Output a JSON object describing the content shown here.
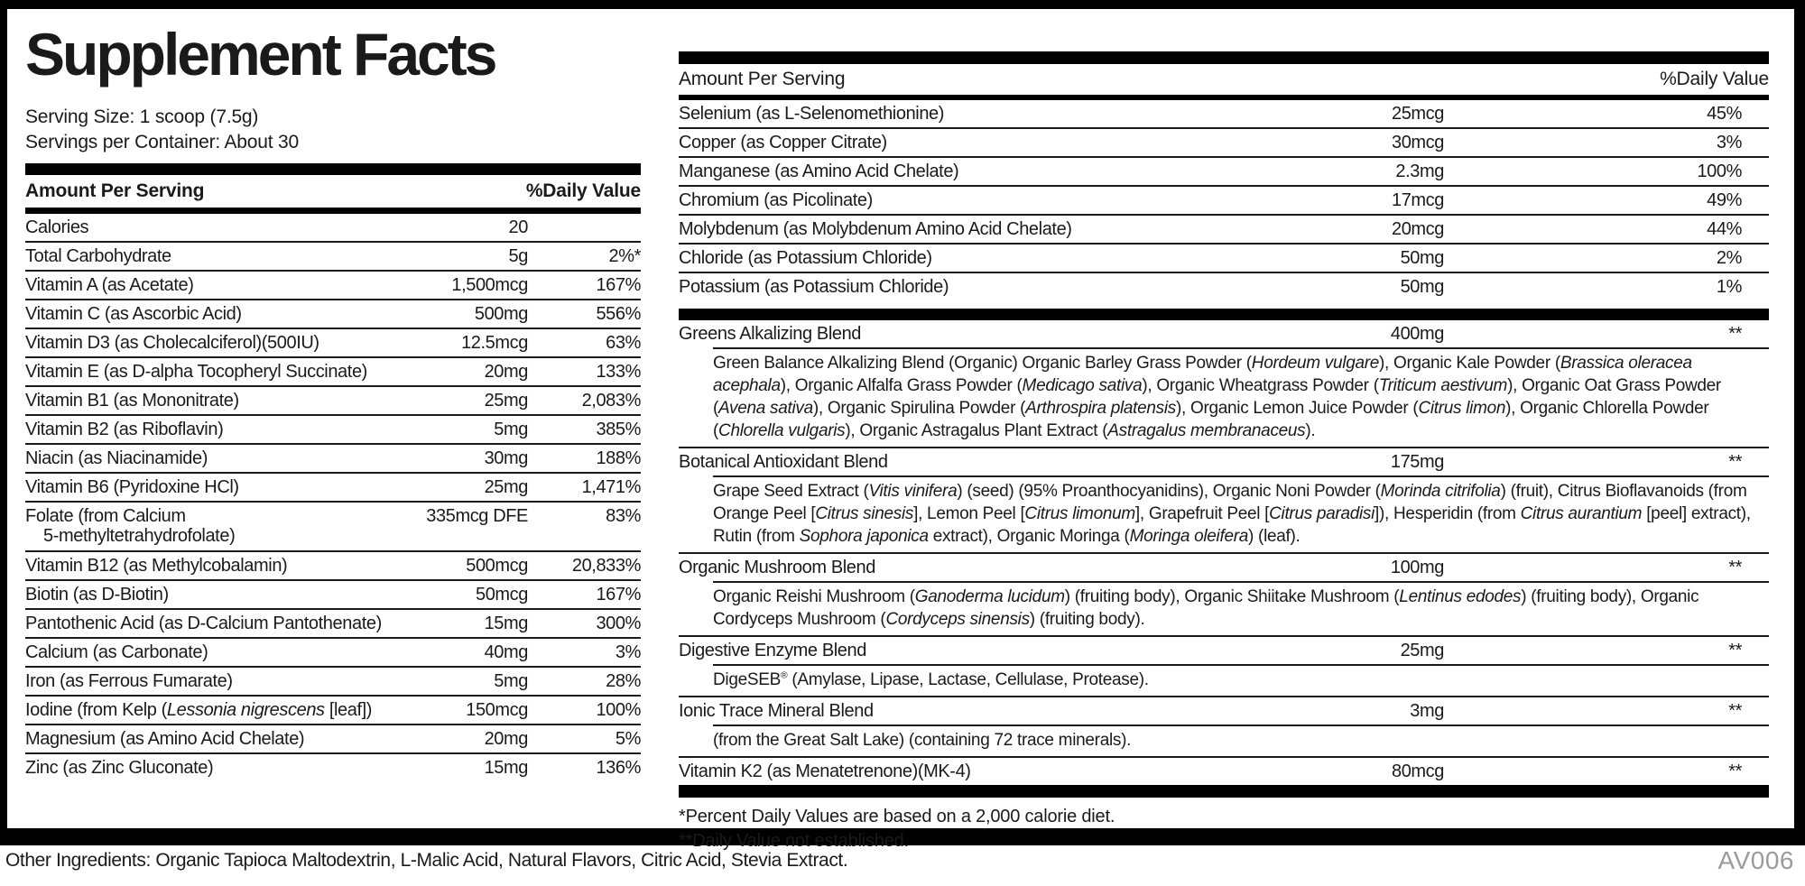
{
  "label": {
    "title": "Supplement Facts",
    "serving_size": "Serving Size: 1 scoop (7.5g)",
    "servings_per_container": "Servings per Container: About 30",
    "other_ingredients": "Other Ingredients: Organic Tapioca Maltodextrin, L-Malic Acid, Natural Flavors, Citric Acid, Stevia Extract.",
    "code": "AV006",
    "footnotes": [
      "*Percent Daily Values are based on a 2,000 calorie diet.",
      "**Daily Value not established."
    ],
    "colors": {
      "text": "#1a1a1a",
      "rule_bars": "#000000",
      "code_gray": "#9b9b9b",
      "background": "#ffffff"
    }
  },
  "left_table": {
    "header": {
      "amount": "Amount Per Serving",
      "dv": "%Daily Value"
    },
    "rows": [
      {
        "name": "Calories",
        "amount": "20",
        "dv": ""
      },
      {
        "name": "Total Carbohydrate",
        "amount": "5g",
        "dv": "2%*"
      },
      {
        "name": "Vitamin A (as Acetate)",
        "amount": "1,500mcg",
        "dv": "167%"
      },
      {
        "name": "Vitamin C (as Ascorbic Acid)",
        "amount": "500mg",
        "dv": "556%"
      },
      {
        "name": "Vitamin D3 (as Cholecalciferol)(500IU)",
        "amount": "12.5mcg",
        "dv": "63%"
      },
      {
        "name": "Vitamin E (as D-alpha Tocopheryl Succinate)",
        "amount": "20mg",
        "dv": "133%"
      },
      {
        "name": "Vitamin B1 (as Mononitrate)",
        "amount": "25mg",
        "dv": "2,083%"
      },
      {
        "name": "Vitamin B2 (as Riboflavin)",
        "amount": "5mg",
        "dv": "385%"
      },
      {
        "name": "Niacin (as Niacinamide)",
        "amount": "30mg",
        "dv": "188%"
      },
      {
        "name": "Vitamin B6 (Pyridoxine HCl)",
        "amount": "25mg",
        "dv": "1,471%"
      },
      {
        "name": "Folate (from Calcium",
        "name2": "5-methyltetrahydrofolate)",
        "amount": "335mcg DFE",
        "dv": "83%"
      },
      {
        "name": "Vitamin B12 (as Methylcobalamin)",
        "amount": "500mcg",
        "dv": "20,833%"
      },
      {
        "name": "Biotin (as D-Biotin)",
        "amount": "50mcg",
        "dv": "167%"
      },
      {
        "name": "Pantothenic Acid (as D-Calcium Pantothenate)",
        "amount": "15mg",
        "dv": "300%"
      },
      {
        "name": "Calcium (as Carbonate)",
        "amount": "40mg",
        "dv": "3%"
      },
      {
        "name": "Iron (as Ferrous Fumarate)",
        "amount": "5mg",
        "dv": "28%"
      },
      {
        "name": [
          {
            "t": "Iodine (from Kelp ("
          },
          {
            "t": "Lessonia nigrescens",
            "i": true
          },
          {
            "t": " [leaf])"
          }
        ],
        "amount": "150mcg",
        "dv": "100%"
      },
      {
        "name": "Magnesium (as Amino Acid Chelate)",
        "amount": "20mg",
        "dv": "5%"
      },
      {
        "name": "Zinc (as Zinc Gluconate)",
        "amount": "15mg",
        "dv": "136%"
      }
    ]
  },
  "right_table": {
    "header": {
      "amount": "Amount Per Serving",
      "dv": "%Daily Value"
    },
    "rows": [
      {
        "name": "Selenium (as L-Selenomethionine)",
        "amount": "25mcg",
        "dv": "45%"
      },
      {
        "name": "Copper (as Copper Citrate)",
        "amount": "30mcg",
        "dv": "3%"
      },
      {
        "name": "Manganese (as Amino Acid Chelate)",
        "amount": "2.3mg",
        "dv": "100%"
      },
      {
        "name": "Chromium (as Picolinate)",
        "amount": "17mcg",
        "dv": "49%"
      },
      {
        "name": "Molybdenum (as Molybdenum Amino Acid Chelate)",
        "amount": "20mcg",
        "dv": "44%"
      },
      {
        "name": "Chloride (as Potassium Chloride)",
        "amount": "50mg",
        "dv": "2%"
      },
      {
        "name": "Potassium (as Potassium Chloride)",
        "amount": "50mg",
        "dv": "1%"
      }
    ],
    "blends": [
      {
        "name": "Greens Alkalizing Blend",
        "amount": "400mg",
        "dv": "**",
        "desc": [
          {
            "t": "Green Balance Alkalizing Blend (Organic) Organic Barley Grass Powder ("
          },
          {
            "t": "Hordeum vulgare",
            "i": true
          },
          {
            "t": "), Organic Kale Powder ("
          },
          {
            "t": "Brassica oleracea acephala",
            "i": true
          },
          {
            "t": "), Organic Alfalfa Grass Powder ("
          },
          {
            "t": "Medicago sativa",
            "i": true
          },
          {
            "t": "), Organic Wheatgrass Powder ("
          },
          {
            "t": "Triticum aestivum",
            "i": true
          },
          {
            "t": "), Organic Oat Grass Powder ("
          },
          {
            "t": "Avena sativa",
            "i": true
          },
          {
            "t": "), Organic Spirulina Powder ("
          },
          {
            "t": "Arthrospira platensis",
            "i": true
          },
          {
            "t": "), Organic Lemon Juice Powder ("
          },
          {
            "t": "Citrus limon",
            "i": true
          },
          {
            "t": "), Organic Chlorella Powder ("
          },
          {
            "t": "Chlorella vulgaris",
            "i": true
          },
          {
            "t": "), Organic Astragalus Plant Extract ("
          },
          {
            "t": "Astragalus membranaceus",
            "i": true
          },
          {
            "t": ")."
          }
        ]
      },
      {
        "name": "Botanical Antioxidant Blend",
        "amount": "175mg",
        "dv": "**",
        "desc": [
          {
            "t": "Grape Seed Extract ("
          },
          {
            "t": "Vitis vinifera",
            "i": true
          },
          {
            "t": ") (seed) (95% Proanthocyanidins), Organic Noni Powder ("
          },
          {
            "t": "Morinda citrifolia",
            "i": true
          },
          {
            "t": ") (fruit), Citrus Bioflavanoids (from Orange Peel ["
          },
          {
            "t": "Citrus sinesis",
            "i": true
          },
          {
            "t": "], Lemon Peel ["
          },
          {
            "t": "Citrus limonum",
            "i": true
          },
          {
            "t": "], Grapefruit Peel ["
          },
          {
            "t": "Citrus paradisi",
            "i": true
          },
          {
            "t": "]), Hesperidin (from "
          },
          {
            "t": "Citrus aurantium",
            "i": true
          },
          {
            "t": " [peel] extract), Rutin (from "
          },
          {
            "t": "Sophora japonica",
            "i": true
          },
          {
            "t": " extract), Organic Moringa ("
          },
          {
            "t": "Moringa oleifera",
            "i": true
          },
          {
            "t": ") (leaf)."
          }
        ]
      },
      {
        "name": "Organic Mushroom Blend",
        "amount": "100mg",
        "dv": "**",
        "desc": [
          {
            "t": "Organic Reishi Mushroom ("
          },
          {
            "t": "Ganoderma lucidum",
            "i": true
          },
          {
            "t": ") (fruiting body), Organic Shiitake Mushroom ("
          },
          {
            "t": "Lentinus edodes",
            "i": true
          },
          {
            "t": ") (fruiting body), Organic Cordyceps Mushroom ("
          },
          {
            "t": "Cordyceps sinensis",
            "i": true
          },
          {
            "t": ") (fruiting body)."
          }
        ]
      },
      {
        "name": "Digestive Enzyme Blend",
        "amount": "25mg",
        "dv": "**",
        "desc": [
          {
            "t": "DigeSEB"
          },
          {
            "t": "®",
            "sup": true
          },
          {
            "t": " (Amylase, Lipase, Lactase, Cellulase, Protease)."
          }
        ]
      },
      {
        "name": "Ionic Trace Mineral Blend",
        "amount": "3mg",
        "dv": "**",
        "desc": [
          {
            "t": "(from the Great Salt Lake) (containing 72 trace minerals)."
          }
        ]
      },
      {
        "name": "Vitamin K2 (as Menatetrenone)(MK-4)",
        "amount": "80mcg",
        "dv": "**"
      }
    ]
  }
}
